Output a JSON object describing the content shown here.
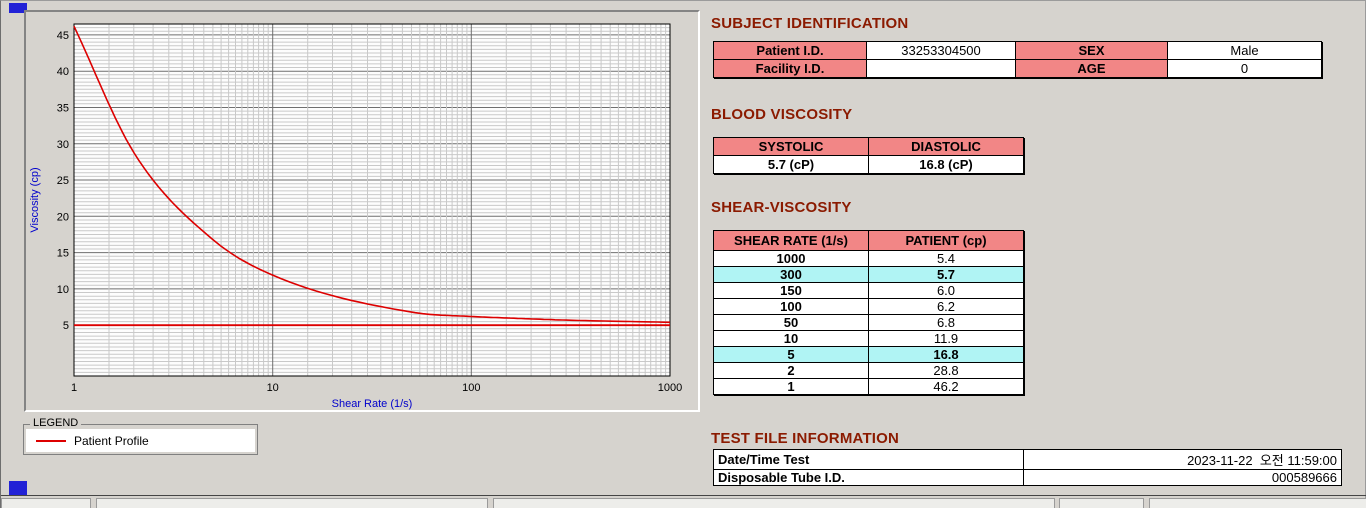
{
  "colors": {
    "section_title": "#8b1a00",
    "table_header_pink": "#f28686",
    "highlight_cyan": "#b0f4f4",
    "curve_red": "#dd0000",
    "axis_label_blue": "#0000cc"
  },
  "subject_identification": {
    "title": "SUBJECT IDENTIFICATION",
    "rows": [
      {
        "label_left": "Patient I.D.",
        "value_left": "33253304500",
        "label_right": "SEX",
        "value_right": "Male"
      },
      {
        "label_left": "Facility I.D.",
        "value_left": "",
        "label_right": "AGE",
        "value_right": "0"
      }
    ]
  },
  "blood_viscosity": {
    "title": "BLOOD VISCOSITY",
    "headers": [
      "SYSTOLIC",
      "DIASTOLIC"
    ],
    "values": [
      "5.7 (cP)",
      "16.8 (cP)"
    ]
  },
  "shear_viscosity": {
    "title": "SHEAR-VISCOSITY",
    "headers": [
      "SHEAR RATE (1/s)",
      "PATIENT (cp)"
    ],
    "rows": [
      {
        "rate": "1000",
        "value": "5.4",
        "highlight": false
      },
      {
        "rate": "300",
        "value": "5.7",
        "highlight": true
      },
      {
        "rate": "150",
        "value": "6.0",
        "highlight": false
      },
      {
        "rate": "100",
        "value": "6.2",
        "highlight": false
      },
      {
        "rate": "50",
        "value": "6.8",
        "highlight": false
      },
      {
        "rate": "10",
        "value": "11.9",
        "highlight": false
      },
      {
        "rate": "5",
        "value": "16.8",
        "highlight": true
      },
      {
        "rate": "2",
        "value": "28.8",
        "highlight": false
      },
      {
        "rate": "1",
        "value": "46.2",
        "highlight": false
      }
    ]
  },
  "test_file_information": {
    "title": "TEST FILE INFORMATION",
    "rows": [
      {
        "label": "Date/Time Test",
        "value": "2023-11-22  오전 11:59:00"
      },
      {
        "label": "Disposable Tube I.D.",
        "value": "000589666"
      }
    ]
  },
  "legend": {
    "title": "LEGEND",
    "items": [
      {
        "label": "Patient Profile",
        "color": "#dd0000"
      }
    ]
  },
  "chart_data": {
    "type": "line",
    "title": "",
    "xlabel": "Shear Rate (1/s)",
    "ylabel": "Viscosity (cp)",
    "x_scale": "log",
    "xlim": [
      1,
      1000
    ],
    "ylim": [
      -2,
      46.5
    ],
    "xticks": [
      1,
      10,
      100,
      1000
    ],
    "yticks": [
      5,
      10,
      15,
      20,
      25,
      30,
      35,
      40,
      45
    ],
    "grid": true,
    "legend_position": "bottom-left-outside",
    "axis_label_color": "#0000cc",
    "series": [
      {
        "name": "Patient Profile",
        "color": "#dd0000",
        "width": 1.6,
        "smooth": true,
        "x": [
          1,
          2,
          5,
          10,
          50,
          100,
          150,
          300,
          1000
        ],
        "y": [
          46.2,
          28.8,
          16.8,
          11.9,
          6.8,
          6.2,
          6.0,
          5.7,
          5.4
        ]
      },
      {
        "name": "5 cp reference line",
        "color": "#dd0000",
        "width": 1.8,
        "smooth": false,
        "x": [
          1,
          1000
        ],
        "y": [
          5,
          5
        ]
      }
    ]
  }
}
